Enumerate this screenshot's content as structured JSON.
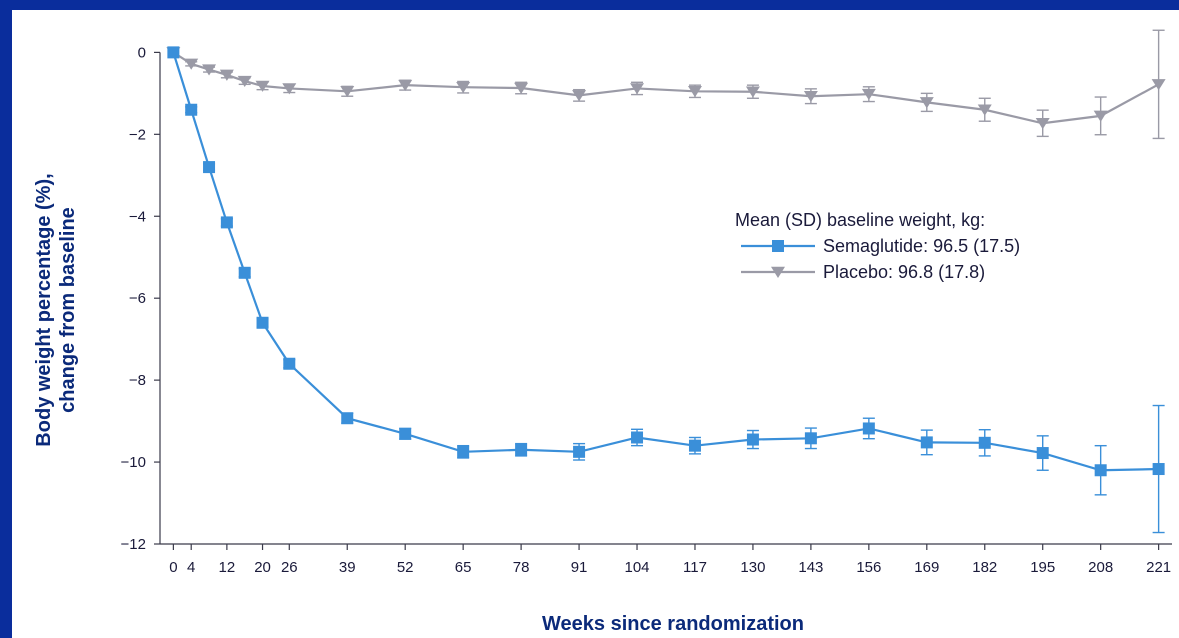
{
  "chart_data": {
    "type": "line",
    "title": "",
    "xlabel": "Weeks since randomization",
    "ylabel_line1": "Body weight percentage (%),",
    "ylabel_line2": "change from baseline",
    "xlim": [
      -3,
      224
    ],
    "ylim": [
      -12,
      0.4
    ],
    "x_ticks": [
      0,
      4,
      12,
      20,
      26,
      39,
      52,
      65,
      78,
      91,
      104,
      117,
      130,
      143,
      156,
      169,
      182,
      195,
      208,
      221
    ],
    "y_ticks": [
      0,
      -2,
      -4,
      -6,
      -8,
      -10,
      -12
    ],
    "y_tick_labels": [
      "0",
      "−2",
      "−4",
      "−6",
      "−8",
      "−10",
      "−12"
    ],
    "legend_title": "Mean (SD) baseline weight, kg:",
    "legend_placement": "center-right",
    "grid": false,
    "series": [
      {
        "name": "Semaglutide: 96.5 (17.5)",
        "color": "#3a8fd9",
        "marker": "square",
        "x": [
          0,
          4,
          8,
          12,
          16,
          20,
          26,
          39,
          52,
          65,
          78,
          91,
          104,
          117,
          130,
          143,
          156,
          169,
          182,
          195,
          208,
          221
        ],
        "y": [
          0,
          -1.4,
          -2.8,
          -4.15,
          -5.38,
          -6.6,
          -7.6,
          -8.93,
          -9.31,
          -9.75,
          -9.7,
          -9.75,
          -9.4,
          -9.6,
          -9.45,
          -9.42,
          -9.18,
          -9.52,
          -9.53,
          -9.78,
          -10.2,
          -10.17
        ],
        "err": [
          0,
          0.07,
          0.08,
          0.09,
          0.1,
          0.1,
          0.1,
          0.12,
          0.13,
          0.15,
          0.15,
          0.2,
          0.2,
          0.2,
          0.22,
          0.25,
          0.25,
          0.3,
          0.32,
          0.42,
          0.6,
          1.55
        ]
      },
      {
        "name": "Placebo: 96.8 (17.8)",
        "color": "#9a9aa6",
        "marker": "triangle-down",
        "x": [
          0,
          4,
          8,
          12,
          16,
          20,
          26,
          39,
          52,
          65,
          78,
          91,
          104,
          117,
          130,
          143,
          156,
          169,
          182,
          195,
          208,
          221
        ],
        "y": [
          0,
          -0.28,
          -0.42,
          -0.55,
          -0.7,
          -0.82,
          -0.88,
          -0.95,
          -0.8,
          -0.85,
          -0.87,
          -1.05,
          -0.88,
          -0.95,
          -0.96,
          -1.07,
          -1.02,
          -1.22,
          -1.4,
          -1.73,
          -1.55,
          -0.78
        ],
        "err": [
          0,
          0.05,
          0.06,
          0.07,
          0.08,
          0.09,
          0.1,
          0.12,
          0.12,
          0.14,
          0.14,
          0.14,
          0.15,
          0.15,
          0.16,
          0.18,
          0.18,
          0.22,
          0.28,
          0.32,
          0.46,
          1.32
        ]
      }
    ]
  }
}
